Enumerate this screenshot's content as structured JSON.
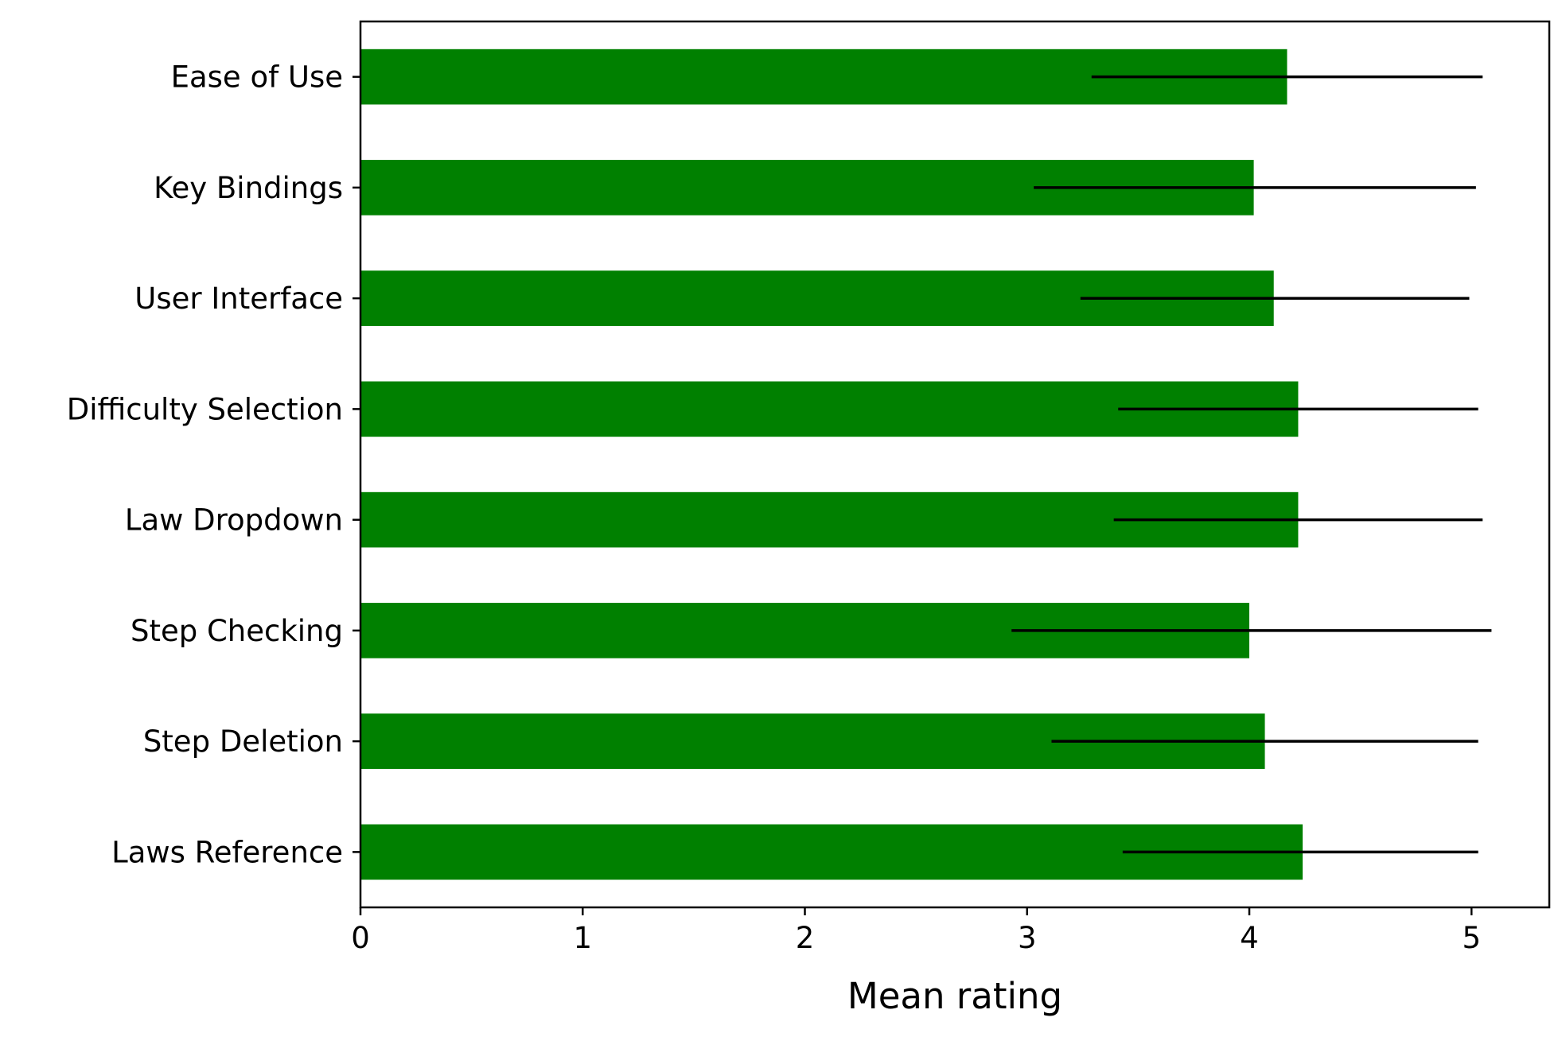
{
  "chart_data": {
    "type": "bar",
    "orientation": "horizontal",
    "title": "",
    "xlabel": "Mean rating",
    "ylabel": "",
    "xlim": [
      0,
      5.35
    ],
    "xticks": [
      "0",
      "1",
      "2",
      "3",
      "4",
      "5"
    ],
    "grid": false,
    "legend": "none",
    "bar_color": "#008000",
    "error_color": "#000000",
    "categories": [
      "Ease of Use",
      "Key Bindings",
      "User Interface",
      "Difficulty Selection",
      "Law Dropdown",
      "Step Checking",
      "Step Deletion",
      "Laws Reference"
    ],
    "values": [
      4.17,
      4.02,
      4.11,
      4.22,
      4.22,
      4.0,
      4.07,
      4.24
    ],
    "error_ranges": [
      [
        3.29,
        5.05
      ],
      [
        3.03,
        5.02
      ],
      [
        3.24,
        4.99
      ],
      [
        3.41,
        5.03
      ],
      [
        3.39,
        5.05
      ],
      [
        2.93,
        5.09
      ],
      [
        3.11,
        5.03
      ],
      [
        3.43,
        5.03
      ]
    ]
  }
}
